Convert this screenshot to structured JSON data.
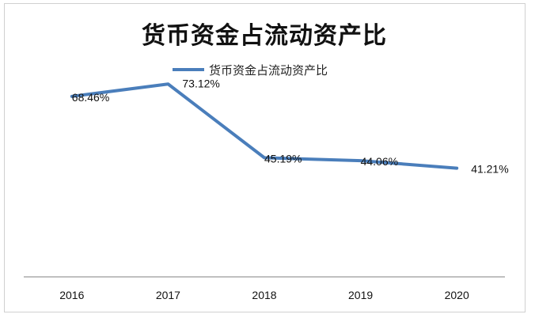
{
  "chart_data": {
    "type": "line",
    "title": "货币资金占流动资产比",
    "categories": [
      "2016",
      "2017",
      "2018",
      "2019",
      "2020"
    ],
    "series": [
      {
        "name": "货币资金占流动资产比",
        "values": [
          68.46,
          73.12,
          45.19,
          44.06,
          41.21
        ],
        "labels": [
          "68.46%",
          "73.12%",
          "45.19%",
          "44.06%",
          "41.21%"
        ],
        "color": "#4a7ebb"
      }
    ],
    "xlabel": "",
    "ylabel": "",
    "ylim": [
      0,
      90
    ],
    "grid": false,
    "legend": "top-center"
  }
}
